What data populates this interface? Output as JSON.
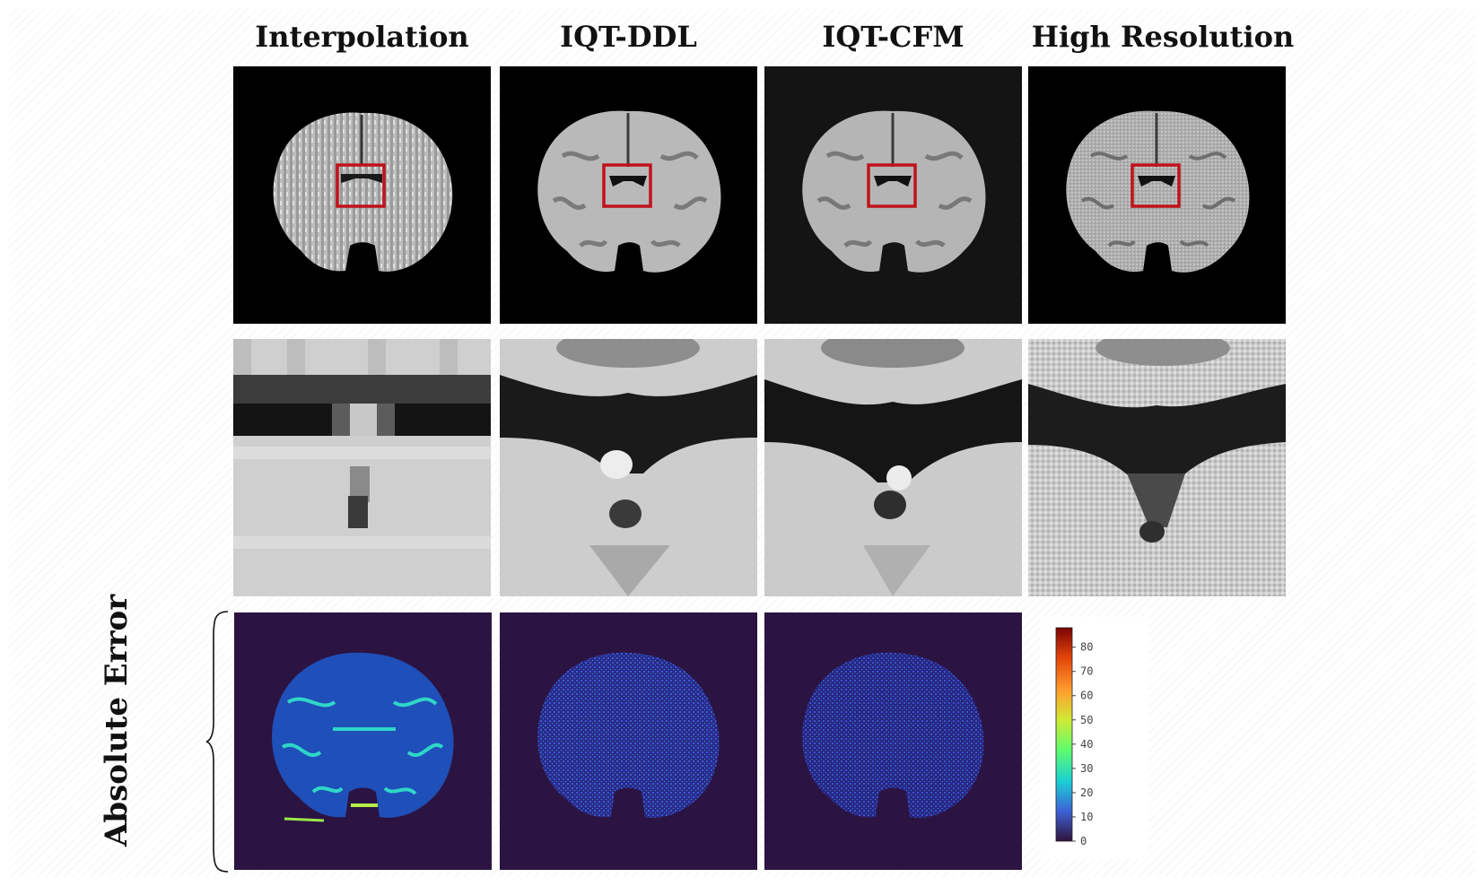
{
  "columns": [
    {
      "title": "Interpolation"
    },
    {
      "title": "IQT-DDL"
    },
    {
      "title": "IQT-CFM"
    },
    {
      "title": "High Resolution"
    }
  ],
  "row_label": "Absolute Error",
  "colorbar": {
    "min": 0,
    "max": 88,
    "ticks": [
      "0",
      "10",
      "20",
      "30",
      "40",
      "50",
      "60",
      "70",
      "80"
    ],
    "colormap": "turbo",
    "colors": [
      "#30123b",
      "#3e62d6",
      "#1bcfd4",
      "#61fc6c",
      "#d2e935",
      "#fe9b2d",
      "#e3440a",
      "#7a0403"
    ]
  },
  "roi_box_color": "#c0121b",
  "error_background_color": "#2b1342"
}
